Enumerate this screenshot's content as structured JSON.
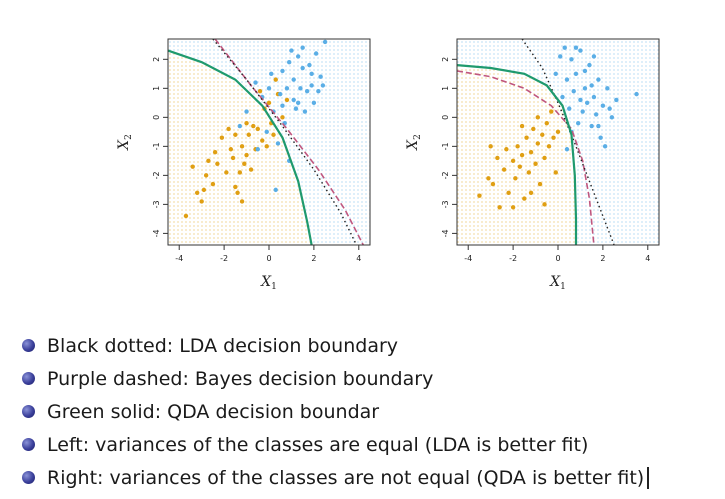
{
  "chart_data": [
    {
      "type": "scatter",
      "panel": "left",
      "xlabel": "X",
      "xlabel_sub": "1",
      "ylabel": "X",
      "ylabel_sub": "2",
      "xlim": [
        -4.5,
        4.5
      ],
      "ylim": [
        -4.4,
        2.7
      ],
      "xticks": [
        -4,
        -2,
        0,
        2,
        4
      ],
      "yticks": [
        -4,
        -3,
        -2,
        -1,
        0,
        1,
        2
      ],
      "colors": {
        "class_orange": "#e09f12",
        "class_blue": "#5aaee6",
        "lda": "#222222",
        "bayes": "#c0577f",
        "qda": "#1f9a6e",
        "bg_orange": "#f7ead2",
        "bg_blue": "#e4f0f8"
      },
      "series": [
        {
          "name": "orange class",
          "points": [
            [
              -3.7,
              -3.4
            ],
            [
              -3.2,
              -2.6
            ],
            [
              -3.0,
              -2.9
            ],
            [
              -2.9,
              -2.5
            ],
            [
              -3.4,
              -1.7
            ],
            [
              -2.8,
              -2.0
            ],
            [
              -2.5,
              -2.3
            ],
            [
              -2.7,
              -1.5
            ],
            [
              -2.3,
              -1.6
            ],
            [
              -2.1,
              -0.7
            ],
            [
              -1.9,
              -1.9
            ],
            [
              -1.7,
              -1.1
            ],
            [
              -1.6,
              -1.4
            ],
            [
              -1.5,
              -0.6
            ],
            [
              -1.5,
              -2.4
            ],
            [
              -1.4,
              -2.6
            ],
            [
              -1.3,
              -1.9
            ],
            [
              -1.2,
              -1.0
            ],
            [
              -1.1,
              -1.6
            ],
            [
              -1.0,
              -0.2
            ],
            [
              -1.0,
              -1.3
            ],
            [
              -0.9,
              -0.6
            ],
            [
              -0.8,
              -1.8
            ],
            [
              -0.7,
              -0.3
            ],
            [
              -0.6,
              -1.1
            ],
            [
              -0.5,
              -0.4
            ],
            [
              -0.3,
              -0.8
            ],
            [
              -0.2,
              0.3
            ],
            [
              -0.1,
              -1.0
            ],
            [
              0.0,
              0.5
            ],
            [
              0.1,
              -0.2
            ],
            [
              0.2,
              -0.6
            ],
            [
              0.4,
              0.8
            ],
            [
              0.6,
              0.0
            ],
            [
              0.8,
              0.6
            ],
            [
              -1.8,
              -0.4
            ],
            [
              -2.4,
              -1.2
            ],
            [
              -1.2,
              -2.9
            ],
            [
              -0.4,
              0.9
            ],
            [
              0.3,
              1.3
            ]
          ]
        },
        {
          "name": "blue class",
          "points": [
            [
              0.6,
              1.6
            ],
            [
              0.9,
              1.9
            ],
            [
              1.1,
              1.3
            ],
            [
              1.3,
              2.1
            ],
            [
              1.5,
              1.7
            ],
            [
              1.7,
              0.9
            ],
            [
              1.9,
              1.5
            ],
            [
              2.1,
              2.2
            ],
            [
              2.3,
              1.4
            ],
            [
              2.5,
              2.6
            ],
            [
              2.0,
              0.5
            ],
            [
              1.2,
              0.3
            ],
            [
              0.8,
              1.0
            ],
            [
              1.6,
              0.2
            ],
            [
              2.2,
              0.9
            ],
            [
              1.0,
              2.3
            ],
            [
              0.5,
              0.8
            ],
            [
              0.0,
              1.0
            ],
            [
              -0.3,
              0.7
            ],
            [
              -0.6,
              1.2
            ],
            [
              0.2,
              0.2
            ],
            [
              1.4,
              1.0
            ],
            [
              1.8,
              1.8
            ],
            [
              0.7,
              -0.2
            ],
            [
              1.1,
              0.6
            ],
            [
              -0.1,
              -0.5
            ],
            [
              -1.0,
              0.2
            ],
            [
              -1.3,
              -0.3
            ],
            [
              0.4,
              -0.9
            ],
            [
              0.9,
              -1.5
            ],
            [
              0.3,
              -2.5
            ],
            [
              2.4,
              1.1
            ],
            [
              1.5,
              2.4
            ],
            [
              0.1,
              1.5
            ],
            [
              -0.5,
              -1.1
            ],
            [
              1.9,
              1.1
            ],
            [
              1.3,
              0.5
            ],
            [
              0.6,
              0.4
            ]
          ]
        }
      ],
      "boundaries": {
        "lda": [
          [
            -2.5,
            2.7
          ],
          [
            -1.0,
            1.3
          ],
          [
            0.5,
            -0.2
          ],
          [
            2.0,
            -1.8
          ],
          [
            3.2,
            -3.3
          ],
          [
            3.9,
            -4.4
          ]
        ],
        "bayes": [
          [
            -2.4,
            2.7
          ],
          [
            -0.8,
            1.1
          ],
          [
            0.8,
            -0.4
          ],
          [
            2.2,
            -1.8
          ],
          [
            3.4,
            -3.2
          ],
          [
            4.2,
            -4.4
          ]
        ],
        "qda": [
          [
            -4.5,
            2.3
          ],
          [
            -3.0,
            1.9
          ],
          [
            -1.5,
            1.3
          ],
          [
            -0.3,
            0.4
          ],
          [
            0.6,
            -0.7
          ],
          [
            1.3,
            -2.2
          ],
          [
            1.7,
            -3.6
          ],
          [
            1.9,
            -4.4
          ]
        ]
      }
    },
    {
      "type": "scatter",
      "panel": "right",
      "xlabel": "X",
      "xlabel_sub": "1",
      "ylabel": "X",
      "ylabel_sub": "2",
      "xlim": [
        -4.5,
        4.5
      ],
      "ylim": [
        -4.4,
        2.7
      ],
      "xticks": [
        -4,
        -2,
        0,
        2,
        4
      ],
      "yticks": [
        -4,
        -3,
        -2,
        -1,
        0,
        1,
        2
      ],
      "colors": {
        "class_orange": "#e09f12",
        "class_blue": "#5aaee6",
        "lda": "#222222",
        "bayes": "#c0577f",
        "qda": "#1f9a6e",
        "bg_orange": "#f7ead2",
        "bg_blue": "#e4f0f8"
      },
      "series": [
        {
          "name": "orange class",
          "points": [
            [
              -3.5,
              -2.7
            ],
            [
              -3.1,
              -2.1
            ],
            [
              -2.9,
              -2.3
            ],
            [
              -2.7,
              -1.4
            ],
            [
              -2.6,
              -3.1
            ],
            [
              -2.4,
              -1.8
            ],
            [
              -2.3,
              -1.1
            ],
            [
              -2.2,
              -2.6
            ],
            [
              -2.0,
              -1.5
            ],
            [
              -1.9,
              -2.1
            ],
            [
              -1.8,
              -1.0
            ],
            [
              -1.7,
              -1.7
            ],
            [
              -1.6,
              -1.3
            ],
            [
              -1.5,
              -2.8
            ],
            [
              -1.4,
              -0.7
            ],
            [
              -1.3,
              -1.9
            ],
            [
              -1.2,
              -1.2
            ],
            [
              -1.1,
              -0.4
            ],
            [
              -1.0,
              -1.6
            ],
            [
              -0.9,
              -0.9
            ],
            [
              -0.8,
              -2.3
            ],
            [
              -0.7,
              -0.6
            ],
            [
              -0.6,
              -1.4
            ],
            [
              -0.5,
              -0.2
            ],
            [
              -0.4,
              -1.0
            ],
            [
              -0.3,
              0.2
            ],
            [
              -0.2,
              -0.7
            ],
            [
              -0.1,
              -1.9
            ],
            [
              0.0,
              -0.5
            ],
            [
              -1.6,
              -0.3
            ],
            [
              -2.0,
              -3.1
            ],
            [
              -0.6,
              -3.0
            ],
            [
              -1.2,
              -2.6
            ],
            [
              -3.0,
              -1.0
            ],
            [
              -0.9,
              0.0
            ]
          ]
        },
        {
          "name": "blue class",
          "points": [
            [
              0.3,
              2.4
            ],
            [
              0.6,
              2.0
            ],
            [
              0.8,
              1.5
            ],
            [
              1.0,
              2.3
            ],
            [
              1.2,
              1.0
            ],
            [
              1.4,
              1.8
            ],
            [
              1.6,
              0.7
            ],
            [
              1.8,
              1.3
            ],
            [
              2.0,
              0.4
            ],
            [
              2.2,
              1.0
            ],
            [
              2.4,
              0.0
            ],
            [
              2.6,
              0.6
            ],
            [
              3.5,
              0.8
            ],
            [
              1.9,
              -0.7
            ],
            [
              2.1,
              -1.0
            ],
            [
              1.5,
              -0.3
            ],
            [
              1.1,
              0.2
            ],
            [
              0.7,
              0.9
            ],
            [
              0.5,
              0.3
            ],
            [
              0.9,
              -0.2
            ],
            [
              1.3,
              0.5
            ],
            [
              1.7,
              0.1
            ],
            [
              0.4,
              1.3
            ],
            [
              -0.1,
              1.5
            ],
            [
              0.2,
              0.7
            ],
            [
              0.6,
              -0.5
            ],
            [
              1.2,
              1.6
            ],
            [
              0.8,
              2.4
            ],
            [
              1.5,
              1.1
            ],
            [
              2.3,
              0.3
            ],
            [
              1.0,
              0.6
            ],
            [
              0.4,
              -1.1
            ],
            [
              1.8,
              -0.3
            ],
            [
              0.1,
              2.1
            ],
            [
              1.6,
              2.1
            ]
          ]
        }
      ],
      "boundaries": {
        "lda": [
          [
            -1.6,
            2.7
          ],
          [
            -0.7,
            1.7
          ],
          [
            0.0,
            0.5
          ],
          [
            0.7,
            -0.8
          ],
          [
            1.4,
            -2.2
          ],
          [
            2.1,
            -3.6
          ],
          [
            2.5,
            -4.4
          ]
        ],
        "bayes": [
          [
            -4.5,
            1.6
          ],
          [
            -3.0,
            1.4
          ],
          [
            -1.5,
            1.0
          ],
          [
            -0.3,
            0.4
          ],
          [
            0.6,
            -0.4
          ],
          [
            1.1,
            -1.5
          ],
          [
            1.4,
            -2.8
          ],
          [
            1.6,
            -4.4
          ]
        ],
        "qda": [
          [
            -4.5,
            1.8
          ],
          [
            -3.0,
            1.7
          ],
          [
            -1.5,
            1.5
          ],
          [
            -0.5,
            1.1
          ],
          [
            0.2,
            0.4
          ],
          [
            0.6,
            -0.6
          ],
          [
            0.75,
            -2.0
          ],
          [
            0.8,
            -3.5
          ],
          [
            0.8,
            -4.4
          ]
        ]
      }
    }
  ],
  "bullets": [
    "Black dotted: LDA decision boundary",
    "Purple dashed: Bayes decision boundary",
    "Green solid: QDA decision boundar",
    "Left: variances of the classes are equal (LDA is better fit)",
    "Right: variances of the classes are not equal (QDA is better fit)"
  ]
}
